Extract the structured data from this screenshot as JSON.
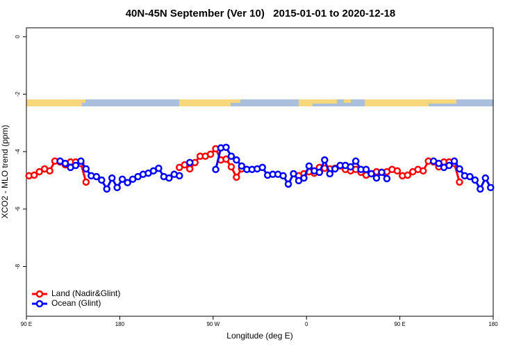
{
  "chart_data": {
    "type": "line",
    "title": "40N-45N September (Ver 10)   2015-01-01 to 2020-12-18",
    "x_label": "Longitude (deg E)",
    "y_label": "XCO2 - MLO trend (ppm)",
    "xlim": [
      90,
      540
    ],
    "ylim": [
      -9.73,
      0.31
    ],
    "xticks": [
      {
        "value": 90,
        "label": "90 E"
      },
      180,
      {
        "value": 270,
        "label": "90 W"
      },
      {
        "value": 360,
        "label": "0"
      },
      {
        "value": 450,
        "label": "90 E"
      },
      {
        "value": 540,
        "label": "180"
      }
    ],
    "yticks": [
      0,
      -2,
      -4,
      -6,
      -8
    ],
    "legend": "bottom-left",
    "x": [
      92.5,
      97.5,
      102.5,
      107.5,
      112.5,
      117.5,
      122.5,
      127.5,
      132.5,
      137.5,
      142.5,
      147.5,
      152.5,
      157.5,
      162.5,
      167.5,
      172.5,
      177.5,
      182.5,
      187.5,
      192.5,
      197.5,
      202.5,
      207.5,
      212.5,
      217.5,
      222.5,
      227.5,
      232.5,
      237.5,
      242.5,
      247.5,
      252.5,
      257.5,
      262.5,
      267.5,
      272.5,
      277.5,
      282.5,
      287.5,
      292.5,
      297.5,
      302.5,
      307.5,
      312.5,
      317.5,
      322.5,
      327.5,
      332.5,
      337.5,
      342.5,
      347.5,
      352.5,
      357.5,
      362.5,
      367.5,
      372.5,
      377.5,
      382.5,
      387.5,
      392.5,
      397.5,
      402.5,
      407.5,
      412.5,
      417.5,
      422.5,
      427.5,
      432.5,
      437.5,
      442.5,
      447.5,
      452.5,
      457.5,
      462.5,
      467.5,
      472.5,
      477.5,
      482.5,
      487.5,
      492.5,
      497.5,
      502.5,
      507.5,
      512.5,
      517.5,
      522.5,
      527.5,
      532.5,
      537.5
    ],
    "series": [
      {
        "name": "Land (Nadir&Glint)",
        "color": "#ff0000",
        "values": [
          -4.84,
          -4.82,
          -4.7,
          -4.6,
          -4.67,
          -4.33,
          -4.36,
          -4.46,
          -4.36,
          -4.36,
          -4.41,
          -5.06,
          null,
          null,
          null,
          null,
          null,
          null,
          null,
          null,
          null,
          null,
          null,
          null,
          null,
          null,
          null,
          null,
          null,
          -4.55,
          -4.46,
          -4.6,
          -4.38,
          -4.16,
          -4.16,
          -4.09,
          -3.9,
          -4.29,
          -4.26,
          -4.53,
          -4.89,
          -4.6,
          null,
          null,
          null,
          null,
          null,
          null,
          null,
          null,
          null,
          null,
          -4.84,
          -4.77,
          -4.7,
          -4.75,
          -4.55,
          -4.58,
          -4.6,
          -4.58,
          -4.5,
          -4.62,
          -4.67,
          -4.62,
          -4.72,
          -4.82,
          -4.77,
          -4.7,
          -4.72,
          -4.7,
          -4.62,
          -4.67,
          -4.84,
          -4.82,
          -4.7,
          -4.62,
          -4.67,
          -4.33,
          -4.36,
          -4.53,
          -4.36,
          -4.36,
          -4.41,
          -5.06,
          null,
          null,
          null,
          null,
          null,
          null
        ]
      },
      {
        "name": "Ocean (Glint)",
        "color": "#0000ff",
        "values": [
          null,
          null,
          null,
          null,
          null,
          null,
          -4.33,
          -4.41,
          -4.55,
          -4.48,
          -4.33,
          -4.6,
          -4.84,
          -4.87,
          -4.99,
          -5.3,
          -4.92,
          -5.25,
          -4.96,
          -5.08,
          -4.96,
          -4.87,
          -4.79,
          -4.75,
          -4.67,
          -4.58,
          -4.87,
          -4.92,
          -4.79,
          -4.84,
          null,
          -4.38,
          null,
          null,
          null,
          null,
          -4.62,
          -3.87,
          -3.85,
          -4.16,
          -4.29,
          -4.5,
          -4.62,
          -4.62,
          -4.6,
          -4.55,
          -4.82,
          -4.79,
          -4.79,
          -4.84,
          -5.13,
          -4.77,
          -5.01,
          -4.92,
          -4.5,
          -4.67,
          -4.72,
          -4.29,
          -4.77,
          -4.6,
          -4.48,
          -4.48,
          -4.53,
          -4.33,
          -4.62,
          -4.62,
          -4.77,
          -4.92,
          -4.72,
          -4.94,
          null,
          null,
          null,
          null,
          null,
          null,
          null,
          null,
          -4.33,
          -4.41,
          -4.55,
          -4.48,
          -4.33,
          -4.6,
          -4.84,
          -4.87,
          -4.99,
          -5.3,
          -4.92,
          -5.25
        ]
      }
    ]
  }
}
